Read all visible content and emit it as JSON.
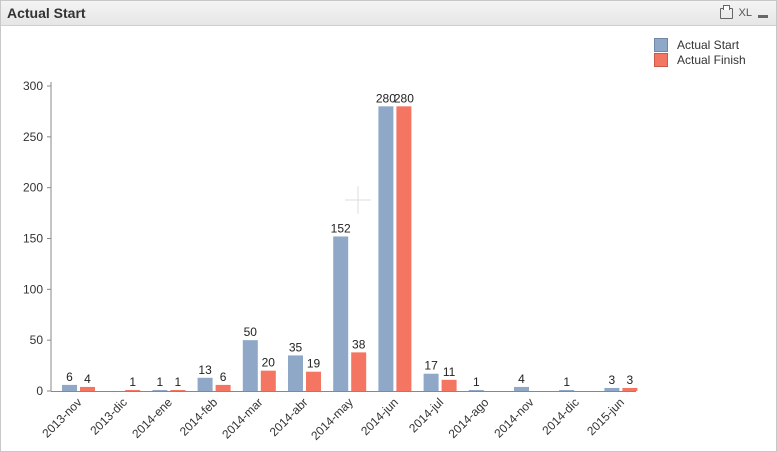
{
  "window": {
    "title": "Actual Start",
    "toolbar": {
      "xl_label": "XL"
    }
  },
  "colors": {
    "actual_start": "#8fa8c8",
    "actual_finish": "#f57563"
  },
  "chart_data": {
    "type": "bar",
    "title": "",
    "xlabel": "",
    "ylabel": "",
    "ylim": [
      0,
      300
    ],
    "yticks": [
      0,
      50,
      100,
      150,
      200,
      250,
      300
    ],
    "grid": false,
    "legend_position": "top-right",
    "categories": [
      "2013-nov",
      "2013-dic",
      "2014-ene",
      "2014-feb",
      "2014-mar",
      "2014-abr",
      "2014-may",
      "2014-jun",
      "2014-jul",
      "2014-ago",
      "2014-nov",
      "2014-dic",
      "2015-jun"
    ],
    "series": [
      {
        "name": "Actual Start",
        "values": [
          6,
          0,
          1,
          13,
          50,
          35,
          152,
          280,
          17,
          1,
          4,
          1,
          3
        ],
        "labels": [
          "6",
          "",
          "1",
          "13",
          "50",
          "35",
          "152",
          "280",
          "17",
          "1",
          "4",
          "1",
          "3"
        ]
      },
      {
        "name": "Actual Finish",
        "values": [
          4,
          1,
          1,
          6,
          20,
          19,
          38,
          280,
          11,
          0,
          0,
          0,
          3
        ],
        "labels": [
          "4",
          "1",
          "1",
          "6",
          "20",
          "19",
          "38",
          "280",
          "11",
          "",
          "",
          "",
          "3"
        ]
      }
    ]
  }
}
